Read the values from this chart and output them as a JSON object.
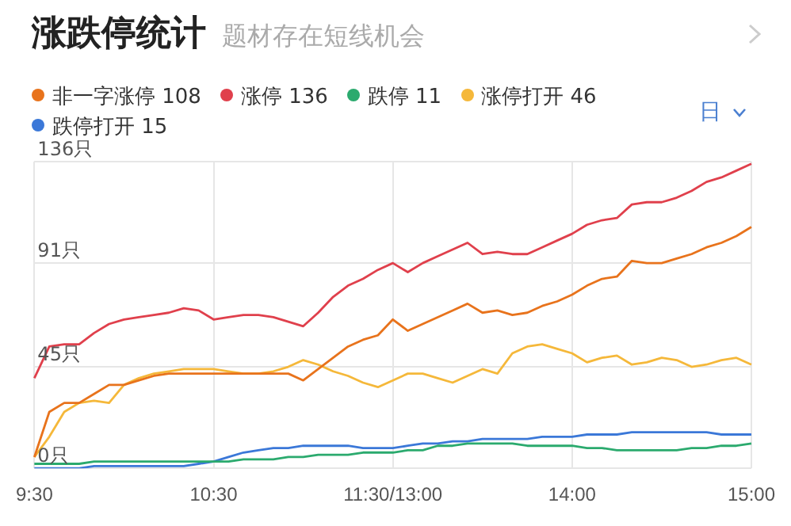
{
  "chart_data": {
    "type": "line",
    "title": "涨跌停统计",
    "subtitle": "题材存在短线机会",
    "annotations": [
      "日"
    ],
    "categories": [
      "9:30",
      null,
      null,
      null,
      null,
      null,
      null,
      null,
      null,
      null,
      null,
      null,
      "10:30",
      null,
      null,
      null,
      null,
      null,
      null,
      null,
      null,
      null,
      null,
      null,
      "11:30/13:00",
      null,
      null,
      null,
      null,
      null,
      null,
      null,
      null,
      null,
      null,
      null,
      "14:00",
      null,
      null,
      null,
      null,
      null,
      null,
      null,
      null,
      null,
      null,
      null,
      "15:00"
    ],
    "ylim": [
      0,
      136
    ],
    "yticks": [
      {
        "value": 0,
        "label": "0只"
      },
      {
        "value": 45,
        "label": "45只"
      },
      {
        "value": 91,
        "label": "91只"
      },
      {
        "value": 136,
        "label": "136只"
      }
    ],
    "grid": true,
    "legend": "top left",
    "marker": "none",
    "line_style": "solid",
    "series": [
      {
        "name": "非一字涨停 108",
        "color": "#e8731c",
        "values": [
          5,
          25,
          29,
          29,
          33,
          37,
          37,
          39,
          41,
          42,
          42,
          42,
          42,
          42,
          42,
          42,
          42,
          42,
          39,
          44,
          49,
          54,
          57,
          59,
          66,
          61,
          64,
          67,
          70,
          73,
          69,
          70,
          68,
          69,
          72,
          74,
          77,
          81,
          84,
          85,
          92,
          91,
          91,
          93,
          95,
          98,
          100,
          103,
          107
        ]
      },
      {
        "name": "涨停 136",
        "color": "#e0404c",
        "values": [
          40,
          54,
          55,
          55,
          60,
          64,
          66,
          67,
          68,
          69,
          71,
          70,
          66,
          67,
          68,
          68,
          67,
          65,
          63,
          69,
          76,
          81,
          84,
          88,
          91,
          87,
          91,
          94,
          97,
          100,
          95,
          96,
          95,
          95,
          98,
          101,
          104,
          108,
          110,
          111,
          117,
          118,
          118,
          120,
          123,
          127,
          129,
          132,
          135
        ]
      },
      {
        "name": "跌停 11",
        "color": "#2baa6e",
        "values": [
          2,
          2,
          2,
          2,
          3,
          3,
          3,
          3,
          3,
          3,
          3,
          3,
          3,
          3,
          4,
          4,
          4,
          5,
          5,
          6,
          6,
          6,
          7,
          7,
          7,
          8,
          8,
          10,
          10,
          11,
          11,
          11,
          11,
          10,
          10,
          10,
          10,
          9,
          9,
          8,
          8,
          8,
          8,
          8,
          9,
          9,
          10,
          10,
          11
        ]
      },
      {
        "name": "涨停打开 46",
        "color": "#f5b83a",
        "values": [
          5,
          14,
          25,
          29,
          30,
          29,
          37,
          40,
          42,
          43,
          44,
          44,
          44,
          43,
          42,
          42,
          43,
          45,
          48,
          46,
          43,
          41,
          38,
          36,
          39,
          42,
          42,
          40,
          38,
          41,
          44,
          42,
          51,
          54,
          55,
          53,
          51,
          47,
          49,
          50,
          46,
          47,
          49,
          48,
          45,
          46,
          48,
          49,
          46
        ]
      },
      {
        "name": "跌停打开 15",
        "color": "#3b78d8",
        "values": [
          0,
          0,
          0,
          0,
          1,
          1,
          1,
          1,
          1,
          1,
          1,
          2,
          3,
          5,
          7,
          8,
          9,
          9,
          10,
          10,
          10,
          10,
          9,
          9,
          9,
          10,
          11,
          11,
          12,
          12,
          13,
          13,
          13,
          13,
          14,
          14,
          14,
          15,
          15,
          15,
          16,
          16,
          16,
          16,
          16,
          16,
          15,
          15,
          15
        ]
      }
    ]
  }
}
